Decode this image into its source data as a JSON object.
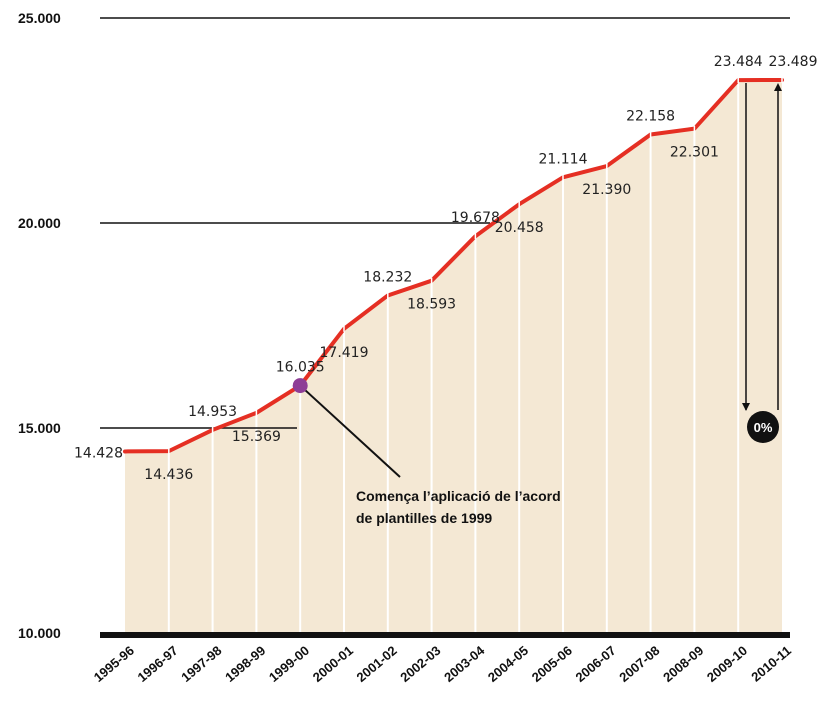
{
  "chart_data": {
    "type": "area",
    "categories": [
      "1995-96",
      "1996-97",
      "1997-98",
      "1998-99",
      "1999-00",
      "2000-01",
      "2001-02",
      "2002-03",
      "2003-04",
      "2004-05",
      "2005-06",
      "2006-07",
      "2007-08",
      "2008-09",
      "2009-10",
      "2010-11"
    ],
    "points": [
      {
        "x": "1995-96",
        "y": 14428
      },
      {
        "x": "1996-97",
        "y": 14436
      },
      {
        "x": "1997-98",
        "y": 14953
      },
      {
        "x": "1998-99",
        "y": 15369
      },
      {
        "x": "1999-00",
        "y": 16035
      },
      {
        "x": "2000-01",
        "y": 17419
      },
      {
        "x": "2001-02",
        "y": 18232
      },
      {
        "x": "2002-03",
        "y": 18593
      },
      {
        "x": "2003-04",
        "y": 19678
      },
      {
        "x": "2004-05",
        "y": 20458
      },
      {
        "x": "2005-06",
        "y": 21114
      },
      {
        "x": "2006-07",
        "y": 21390
      },
      {
        "x": "2007-08",
        "y": 22158
      },
      {
        "x": "2008-09",
        "y": 22301
      },
      {
        "x": "2009-10",
        "y": 23484
      },
      {
        "x": "2010-11",
        "y": 23489
      }
    ],
    "data_labels": [
      "14.428",
      "14.436",
      "14.953",
      "15.369",
      "16.035",
      "17.419",
      "18.232",
      "18.593",
      "19.678",
      "20.458",
      "21.114",
      "21.390",
      "22.158",
      "22.301",
      "23.484",
      "23.489"
    ],
    "label_positions": [
      "left",
      "below",
      "above",
      "below",
      "above",
      "below",
      "above",
      "below",
      "above",
      "below",
      "above",
      "below",
      "above",
      "below",
      "above",
      "above"
    ],
    "ylim": [
      10000,
      25000
    ],
    "y_ticks": [
      {
        "value": 10000,
        "label": "10.000"
      },
      {
        "value": 15000,
        "label": "15.000"
      },
      {
        "value": 20000,
        "label": "20.000"
      },
      {
        "value": 25000,
        "label": "25.000"
      }
    ],
    "highlight": {
      "category": "1999-00",
      "color": "#8e3d96"
    },
    "annotation": {
      "lines": [
        "Comença l’aplicació de l’acord",
        "de plantilles de 1999"
      ]
    },
    "badge": {
      "text": "0%"
    },
    "title": "",
    "xlabel": "",
    "ylabel": "",
    "grid": "partial horizontal lines",
    "colors": {
      "line": "#e52f23",
      "fill": "#f4e8d4",
      "axis": "#111111",
      "highlight": "#8e3d96",
      "badge": "#111111"
    }
  }
}
